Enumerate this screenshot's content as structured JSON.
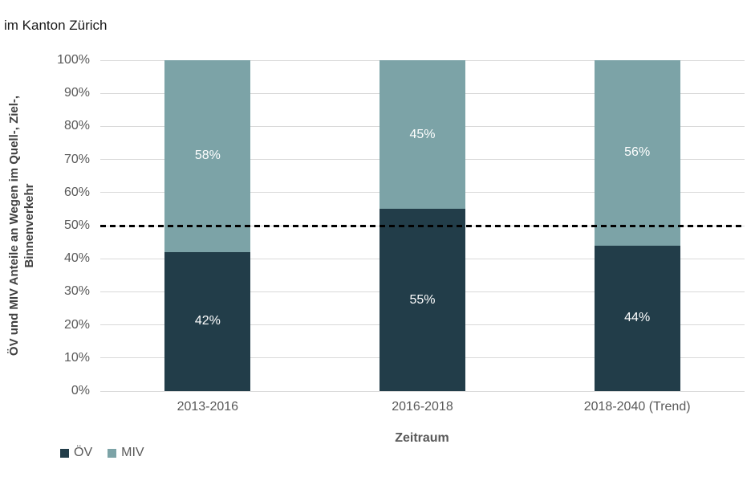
{
  "chart_data": {
    "type": "bar",
    "stacked": true,
    "title": "im Kanton Zürich",
    "categories": [
      "2013-2016",
      "2016-2018",
      "2018-2040 (Trend)"
    ],
    "series": [
      {
        "name": "ÖV",
        "color": "#223d49",
        "values": [
          42,
          55,
          44
        ]
      },
      {
        "name": "MIV",
        "color": "#7ca3a7",
        "values": [
          58,
          45,
          56
        ]
      }
    ],
    "xlabel": "Zeitraum",
    "ylabel": "ÖV und MIV Anteile an Wegen im Quell-, Ziel-, Binnenverkehr",
    "ylabel_lines": [
      "ÖV und MIV Anteile an Wegen im Quell-, Ziel-,",
      "Binnenverkehr"
    ],
    "ylim": [
      0,
      100
    ],
    "ytick_step": 10,
    "ytick_labels": [
      "0%",
      "10%",
      "20%",
      "30%",
      "40%",
      "50%",
      "60%",
      "70%",
      "80%",
      "90%",
      "100%"
    ],
    "grid": true,
    "reference_line": {
      "value": 50,
      "style": "dashed",
      "color": "#000000",
      "thickness_px": 3
    },
    "legend_position": "bottom-left",
    "data_label_suffix": "%",
    "data_label_color": "#ffffff"
  },
  "colors": {
    "grid": "#d9d9d9",
    "axis_text": "#595959",
    "y_axis_title_text": "#404040",
    "title_text": "#1a1a1a"
  }
}
